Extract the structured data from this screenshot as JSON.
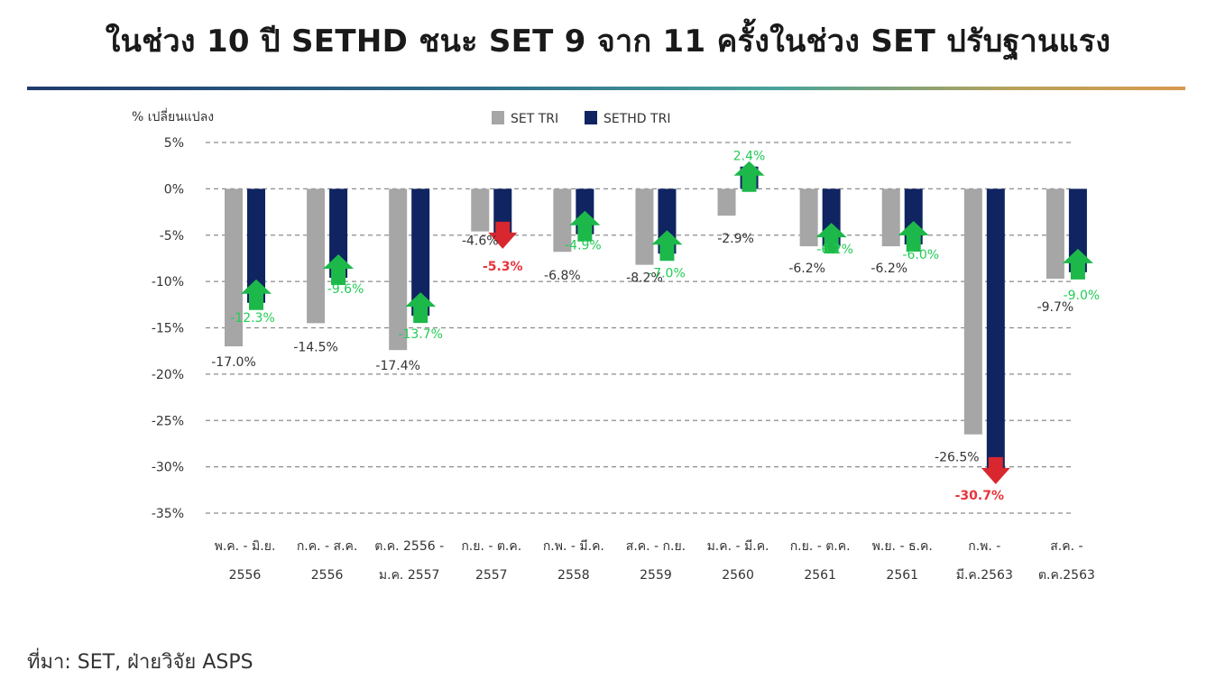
{
  "header": {
    "title": "ในช่วง 10 ปี SETHD ชนะ SET 9 จาก 11 ครั้งในช่วง SET ปรับฐานแรง"
  },
  "footer": {
    "source": "ที่มา: SET, ฝ่ายวิจัย ASPS"
  },
  "colors": {
    "set_tri": "#a6a6a6",
    "sethd_tri": "#0f2461",
    "arrow_up": "#1db84a",
    "arrow_down": "#d8272e"
  },
  "chart_data": {
    "type": "bar",
    "title": "",
    "xlabel": "",
    "ylabel": "% เปลี่ยนแปลง",
    "ylim": [
      -35,
      5
    ],
    "yticks": [
      5,
      0,
      -5,
      -10,
      -15,
      -20,
      -25,
      -30,
      -35
    ],
    "ytick_labels": [
      "5%",
      "0%",
      "-5%",
      "-10%",
      "-15%",
      "-20%",
      "-25%",
      "-30%",
      "-35%"
    ],
    "grid": "horizontal-dashed",
    "legend": "top-center",
    "categories": [
      [
        "พ.ค. - มิ.ย.",
        "2556"
      ],
      [
        "ก.ค. - ส.ค.",
        "2556"
      ],
      [
        "ต.ค. 2556 -",
        "ม.ค. 2557"
      ],
      [
        "ก.ย. - ต.ค.",
        "2557"
      ],
      [
        "ก.พ. - มี.ค.",
        "2558"
      ],
      [
        "ส.ค. - ก.ย.",
        "2559"
      ],
      [
        "ม.ค. - มี.ค.",
        "2560"
      ],
      [
        "ก.ย. - ต.ค.",
        "2561"
      ],
      [
        "พ.ย. - ธ.ค.",
        "2561"
      ],
      [
        "ก.พ. -",
        "มี.ค.2563"
      ],
      [
        "ส.ค. -",
        "ต.ค.2563"
      ]
    ],
    "series": [
      {
        "name": "SET TRI",
        "values": [
          -17.0,
          -14.5,
          -17.4,
          -4.6,
          -6.8,
          -8.2,
          -2.9,
          -6.2,
          -6.2,
          -26.5,
          -9.7
        ],
        "labels": [
          "-17.0%",
          "-14.5%",
          "-17.4%",
          "-4.6%",
          "-6.8%",
          "-8.2%",
          "-2.9%",
          "-6.2%",
          "-6.2%",
          "-26.5%",
          "-9.7%"
        ]
      },
      {
        "name": "SETHD TRI",
        "values": [
          -12.3,
          -9.6,
          -13.7,
          -5.3,
          -4.9,
          -7.0,
          2.4,
          -6.2,
          -6.0,
          -30.7,
          -9.0
        ],
        "labels": [
          "-12.3%",
          "-9.6%",
          "-13.7%",
          "-5.3%",
          "-4.9%",
          "-7.0%",
          "2.4%",
          "-6.2%",
          "-6.0%",
          "-30.7%",
          "-9.0%"
        ],
        "arrows": [
          "up",
          "up",
          "up",
          "down",
          "up",
          "up",
          "up",
          "up",
          "up",
          "down",
          "up"
        ]
      }
    ]
  }
}
